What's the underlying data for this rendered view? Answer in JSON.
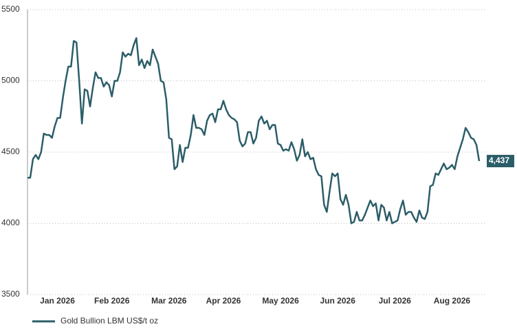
{
  "chart_data": {
    "type": "line",
    "categories": [
      null,
      null,
      null,
      null,
      null,
      null,
      null,
      null,
      null,
      null,
      null,
      "Jan 2026",
      null,
      null,
      null,
      null,
      null,
      null,
      null,
      null,
      null,
      null,
      null,
      null,
      null,
      null,
      null,
      null,
      null,
      null,
      null,
      "Feb 2026",
      null,
      null,
      null,
      null,
      null,
      null,
      null,
      null,
      null,
      null,
      null,
      null,
      null,
      null,
      null,
      null,
      null,
      null,
      null,
      null,
      "Mar 2026",
      null,
      null,
      null,
      null,
      null,
      null,
      null,
      null,
      null,
      null,
      null,
      null,
      null,
      null,
      null,
      null,
      null,
      null,
      null,
      "Apr 2026",
      null,
      null,
      null,
      null,
      null,
      null,
      null,
      null,
      null,
      null,
      null,
      null,
      null,
      null,
      null,
      null,
      null,
      null,
      null,
      null,
      "May 2026",
      null,
      null,
      null,
      null,
      null,
      null,
      null,
      null,
      null,
      null,
      null,
      null,
      null,
      null,
      null,
      null,
      null,
      null,
      null,
      null,
      "Jun 2026",
      null,
      null,
      null,
      null,
      null,
      null,
      null,
      null,
      null,
      null,
      null,
      null,
      null,
      null,
      null,
      null,
      null,
      null,
      null,
      null,
      "Jul 2026",
      null,
      null,
      null,
      null,
      null,
      null,
      null,
      null,
      null,
      null,
      null,
      null,
      null,
      null,
      null,
      null,
      null,
      null,
      null,
      null,
      "Aug 2026",
      null,
      null,
      null,
      null,
      null,
      null,
      null,
      null,
      null,
      null
    ],
    "series": [
      {
        "name": "Gold Bullion LBM US$/t oz",
        "color": "#2b5d68",
        "values": [
          4320,
          4320,
          4450,
          4480,
          4450,
          4500,
          4630,
          4620,
          4620,
          4600,
          4680,
          4740,
          4740,
          4880,
          5000,
          5100,
          5100,
          5280,
          5270,
          5000,
          4700,
          4940,
          4930,
          4820,
          4950,
          5060,
          5020,
          5020,
          4960,
          4990,
          4970,
          4890,
          5000,
          5000,
          5060,
          5200,
          5170,
          5190,
          5180,
          5250,
          5300,
          5110,
          5150,
          5090,
          5140,
          5110,
          5220,
          5170,
          5120,
          5000,
          4990,
          4870,
          4600,
          4590,
          4380,
          4400,
          4550,
          4430,
          4530,
          4530,
          4620,
          4760,
          4670,
          4670,
          4660,
          4620,
          4720,
          4760,
          4770,
          4710,
          4800,
          4800,
          4860,
          4800,
          4760,
          4740,
          4730,
          4710,
          4580,
          4540,
          4560,
          4640,
          4640,
          4560,
          4600,
          4720,
          4750,
          4700,
          4720,
          4660,
          4690,
          4690,
          4560,
          4550,
          4510,
          4520,
          4510,
          4570,
          4520,
          4440,
          4480,
          4590,
          4470,
          4500,
          4450,
          4460,
          4380,
          4340,
          4330,
          4130,
          4080,
          4220,
          4350,
          4330,
          4350,
          4170,
          4130,
          4200,
          4130,
          4000,
          4010,
          4080,
          4020,
          4020,
          4060,
          4110,
          4160,
          4120,
          4140,
          4020,
          4130,
          4110,
          4020,
          4080,
          4000,
          4010,
          4020,
          4100,
          4160,
          4060,
          4080,
          4080,
          4040,
          4010,
          4090,
          4040,
          4030,
          4080,
          4260,
          4270,
          4350,
          4340,
          4380,
          4420,
          4380,
          4390,
          4410,
          4380,
          4470,
          4530,
          4590,
          4670,
          4640,
          4600,
          4590,
          4550,
          4437
        ],
        "value_labels": [
          null,
          null,
          null,
          null,
          null,
          null,
          null,
          null,
          null,
          null,
          null,
          null,
          null,
          null,
          null,
          null,
          null,
          null,
          null,
          null,
          null,
          null,
          null,
          null,
          null,
          null,
          null,
          null,
          null,
          null,
          null,
          null,
          null,
          null,
          null,
          null,
          null,
          null,
          null,
          null,
          null,
          null,
          null,
          null,
          null,
          null,
          null,
          null,
          null,
          null,
          null,
          null,
          null,
          null,
          null,
          null,
          null,
          null,
          null,
          null,
          null,
          null,
          null,
          null,
          null,
          null,
          null,
          null,
          null,
          null,
          null,
          null,
          null,
          null,
          null,
          null,
          null,
          null,
          null,
          null,
          null,
          null,
          null,
          null,
          null,
          null,
          null,
          null,
          null,
          null,
          null,
          null,
          null,
          null,
          null,
          null,
          null,
          null,
          null,
          null,
          null,
          null,
          null,
          null,
          null,
          null,
          null,
          null,
          null,
          null,
          null,
          null,
          null,
          null,
          null,
          null,
          null,
          null,
          null,
          null,
          null,
          null,
          null,
          null,
          null,
          null,
          null,
          null,
          null,
          null,
          null,
          null,
          null,
          null,
          null,
          null,
          null,
          null,
          null,
          null,
          null,
          null,
          null,
          null,
          null,
          null,
          null,
          null,
          null,
          null,
          null,
          null,
          null,
          null,
          null,
          null,
          null,
          null,
          null,
          null,
          null,
          null,
          null,
          null,
          null,
          null,
          "4,437"
        ]
      }
    ],
    "ylim": [
      3500,
      5500
    ],
    "yticks": [
      3500,
      4000,
      4500,
      5000,
      5500
    ],
    "grid": true
  }
}
